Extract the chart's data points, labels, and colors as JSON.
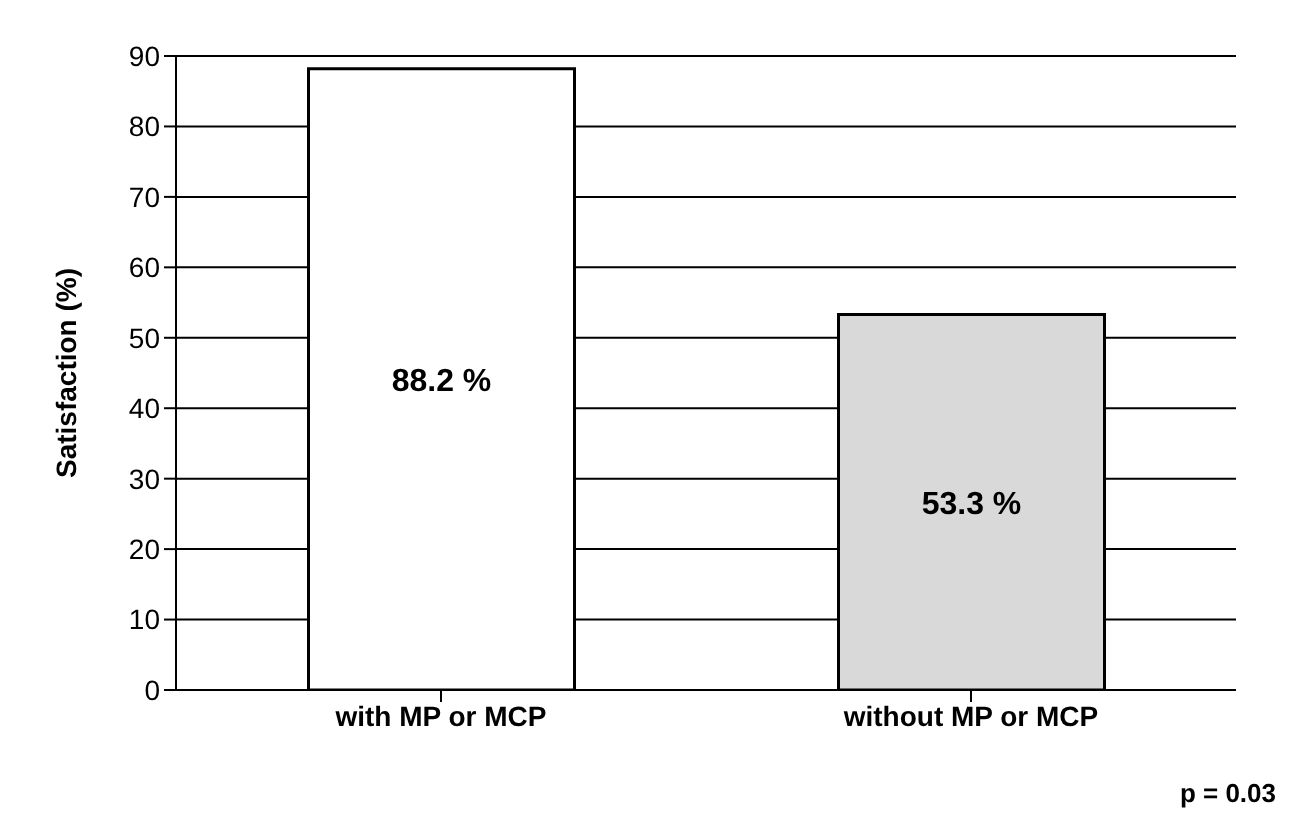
{
  "chart_data": {
    "type": "bar",
    "ylabel": "Satisfaction (%)",
    "categories": [
      "with MP or MCP",
      "without MP or MCP"
    ],
    "values": [
      88.2,
      53.3
    ],
    "colors": [
      "#ffffff",
      "#d9d9d9"
    ],
    "value_labels": [
      "88.2 %",
      "53.3 %"
    ],
    "ylim": [
      0,
      90
    ],
    "yticks": [
      0,
      10,
      20,
      30,
      40,
      50,
      60,
      70,
      80,
      90
    ],
    "grid": "y",
    "annotations": [
      "p = 0.03"
    ]
  }
}
